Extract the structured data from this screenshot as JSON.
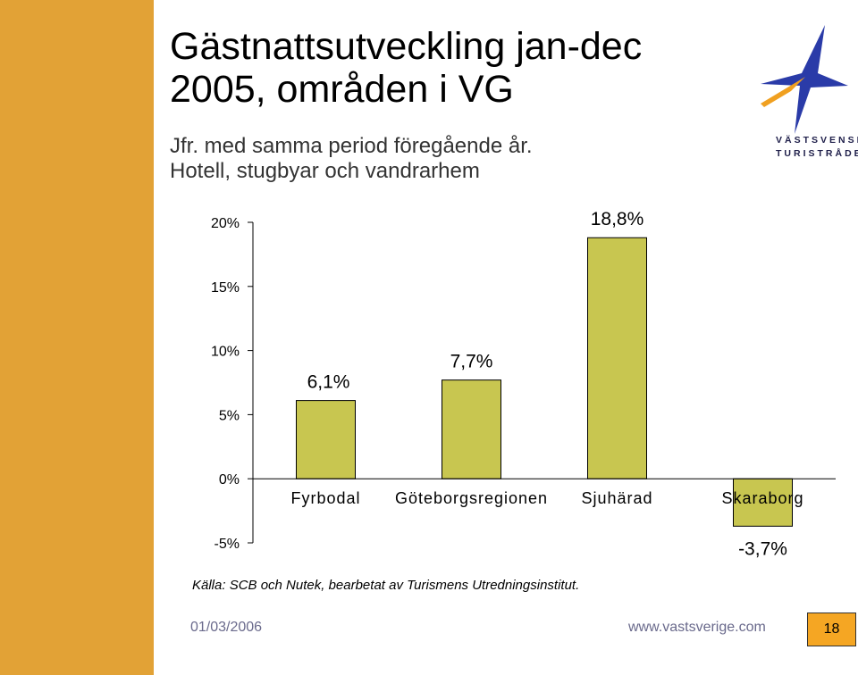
{
  "colors": {
    "sidebar": "#e2a236",
    "bar_fill": "#c8c650",
    "logo_blue": "#2a3ba8",
    "logo_orange": "#f0a020",
    "page_box": "#f5a623"
  },
  "slide": {
    "title_line1": "Gästnattsutveckling jan-dec",
    "title_line2": "2005, områden i VG",
    "subtitle_line1": "Jfr. med samma period föregående år.",
    "subtitle_line2": "Hotell, stugbyar och vandrarhem",
    "source": "Källa: SCB och Nutek, bearbetat av Turismens Utredningsinstitut."
  },
  "logo": {
    "line1": "VÄSTSVENSKA",
    "line2": "TURISTRÅDET"
  },
  "footer": {
    "date": "01/03/2006",
    "url": "www.vastsverige.com",
    "page": "18"
  },
  "chart_data": {
    "type": "bar",
    "categories": [
      "Fyrbodal",
      "Göteborgsregionen",
      "Sjuhärad",
      "Skaraborg"
    ],
    "values": [
      6.1,
      7.7,
      18.8,
      -3.7
    ],
    "value_labels": [
      "6,1%",
      "7,7%",
      "18,8%",
      "-3,7%"
    ],
    "ylim": [
      -5,
      20
    ],
    "yticks": [
      20,
      15,
      10,
      5,
      0,
      -5
    ],
    "ytick_labels": [
      "20%",
      "15%",
      "10%",
      "5%",
      "0%",
      "-5%"
    ],
    "grid": false,
    "legend": false
  }
}
